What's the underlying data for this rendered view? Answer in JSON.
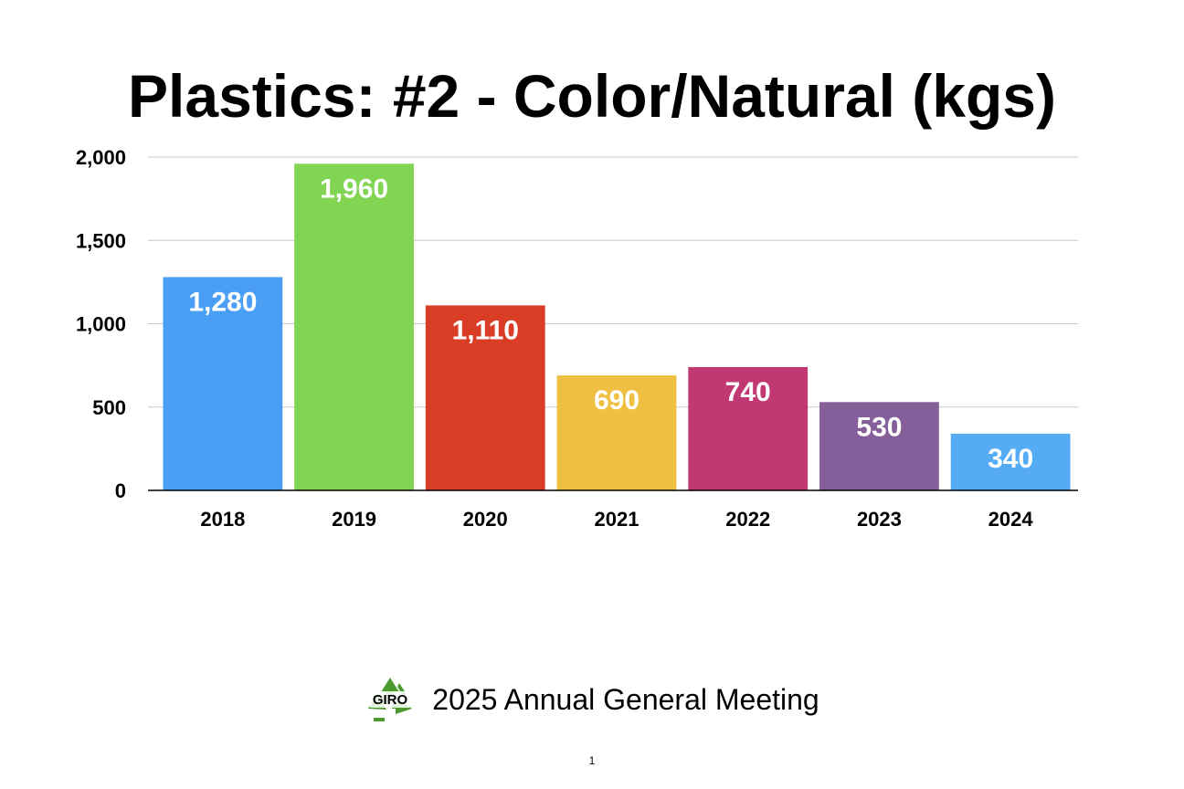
{
  "slide": {
    "title": "Plastics: #2 - Color/Natural (kgs)",
    "footer_text": "2025 Annual General Meeting",
    "page_number": "1",
    "logo_text": "GIRO",
    "logo_icon": "recycle-icon",
    "logo_color": "#4a9a2e"
  },
  "chart_data": {
    "type": "bar",
    "title": "Plastics: #2 - Color/Natural (kgs)",
    "xlabel": "",
    "ylabel": "",
    "categories": [
      "2018",
      "2019",
      "2020",
      "2021",
      "2022",
      "2023",
      "2024"
    ],
    "values": [
      1280,
      1960,
      1110,
      690,
      740,
      530,
      340
    ],
    "data_labels": [
      "1,280",
      "1,960",
      "1,110",
      "690",
      "740",
      "530",
      "340"
    ],
    "colors": [
      "#4a9ff5",
      "#82d552",
      "#d93d26",
      "#efbf42",
      "#c23873",
      "#855f9a",
      "#55acf5"
    ],
    "ylim": [
      0,
      2000
    ],
    "yticks": [
      0,
      500,
      1000,
      1500,
      2000
    ],
    "ytick_labels": [
      "0",
      "500",
      "1,000",
      "1,500",
      "2,000"
    ],
    "grid": true,
    "legend": "none"
  }
}
